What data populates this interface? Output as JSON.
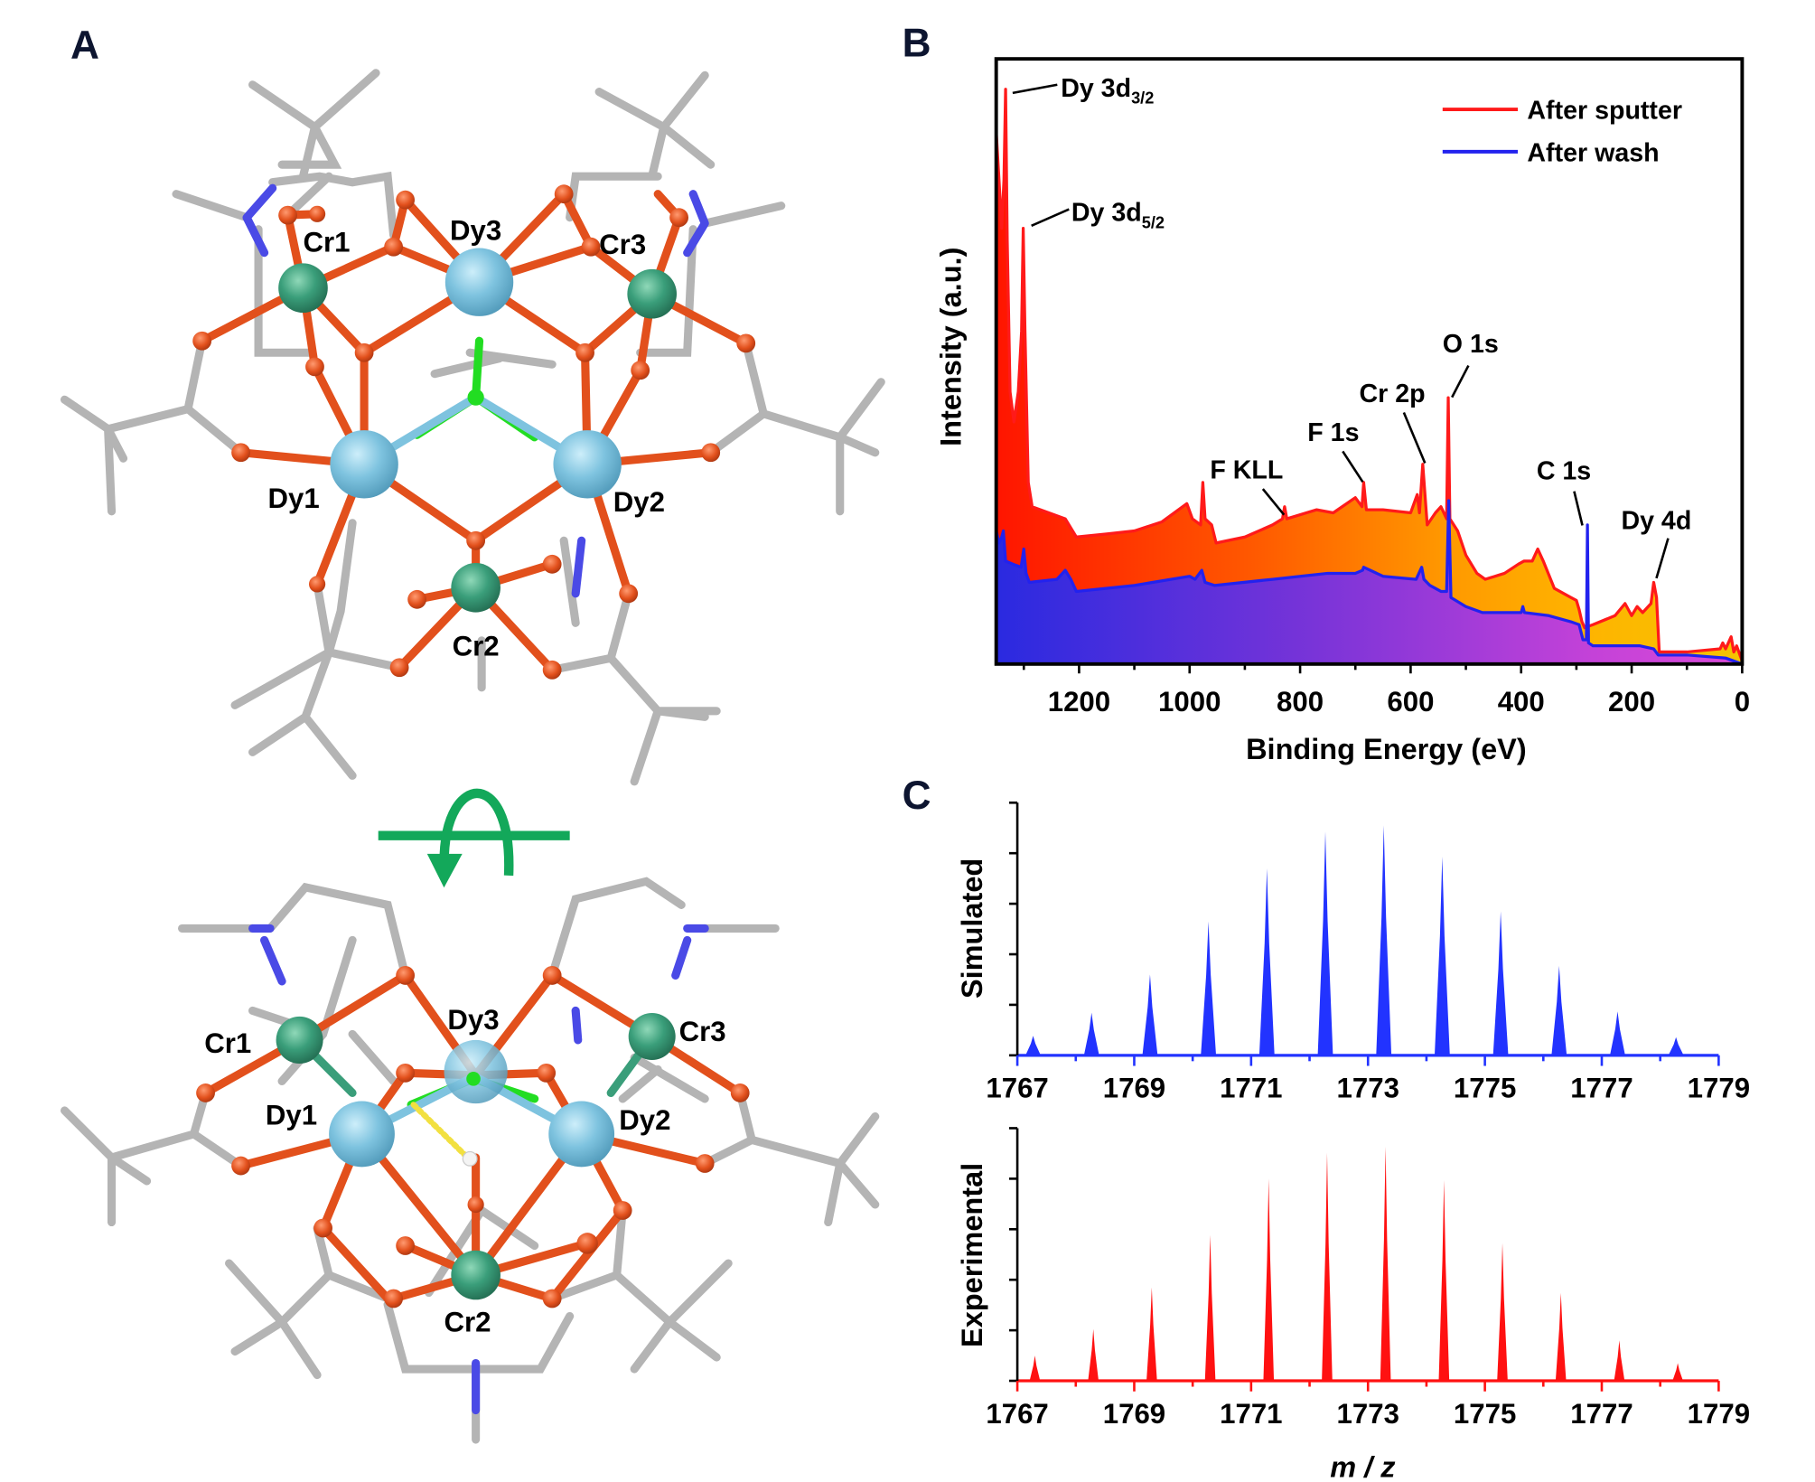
{
  "panel_labels": {
    "a": "A",
    "b": "B",
    "c": "C"
  },
  "panel_a": {
    "top_view_labels": {
      "cr1": "Cr1",
      "dy3": "Dy3",
      "cr3": "Cr3",
      "dy1": "Dy1",
      "dy2": "Dy2",
      "cr2": "Cr2"
    },
    "side_view_labels": {
      "cr1": "Cr1",
      "dy3": "Dy3",
      "cr3": "Cr3",
      "dy1": "Dy1",
      "dy2": "Dy2",
      "cr2": "Cr2"
    },
    "colors": {
      "dy": "#7ec3df",
      "cr": "#3a9e7a",
      "o": "#e2501c",
      "n": "#4a4ae6",
      "c": "#b4b4b4",
      "f": "#22dd22",
      "arrow": "#13a85a"
    }
  },
  "chart_data": [
    {
      "type": "area",
      "id": "xps-survey",
      "title": "",
      "xlabel": "Binding Energy (eV)",
      "ylabel": "Intensity (a.u.)",
      "xlim": [
        1350,
        0
      ],
      "ylim": [
        0,
        100
      ],
      "x_reversed": true,
      "xticks": [
        1200,
        1000,
        800,
        600,
        400,
        200,
        0
      ],
      "xtick_labels": [
        "1200",
        "1000",
        "800",
        "600",
        "400",
        "200",
        "0"
      ],
      "grid": false,
      "legend_position": "top-right",
      "series": [
        {
          "name": "After sputter",
          "color": "#ff1a1a",
          "points": [
            [
              1350,
              88
            ],
            [
              1345,
              80
            ],
            [
              1340,
              72
            ],
            [
              1336,
              80
            ],
            [
              1333,
              95
            ],
            [
              1330,
              70
            ],
            [
              1325,
              45
            ],
            [
              1318,
              40
            ],
            [
              1310,
              45
            ],
            [
              1304,
              55
            ],
            [
              1301,
              72
            ],
            [
              1298,
              55
            ],
            [
              1292,
              30
            ],
            [
              1285,
              26
            ],
            [
              1240,
              24.5
            ],
            [
              1225,
              24
            ],
            [
              1205,
              21
            ],
            [
              1150,
              21.5
            ],
            [
              1100,
              22
            ],
            [
              1050,
              23.5
            ],
            [
              1005,
              26.5
            ],
            [
              995,
              24
            ],
            [
              980,
              23
            ],
            [
              976,
              30
            ],
            [
              972,
              24
            ],
            [
              960,
              23
            ],
            [
              952,
              20
            ],
            [
              900,
              21
            ],
            [
              850,
              23
            ],
            [
              832,
              24
            ],
            [
              828,
              26
            ],
            [
              824,
              24
            ],
            [
              770,
              25.5
            ],
            [
              740,
              25
            ],
            [
              700,
              27.5
            ],
            [
              688,
              26
            ],
            [
              685,
              30
            ],
            [
              680,
              25.5
            ],
            [
              650,
              25.5
            ],
            [
              600,
              25
            ],
            [
              588,
              28
            ],
            [
              584,
              25
            ],
            [
              578,
              33
            ],
            [
              574,
              28
            ],
            [
              570,
              23
            ],
            [
              555,
              25
            ],
            [
              545,
              26
            ],
            [
              535,
              24
            ],
            [
              532,
              44
            ],
            [
              529,
              24
            ],
            [
              515,
              22
            ],
            [
              500,
              18
            ],
            [
              480,
              15
            ],
            [
              465,
              14
            ],
            [
              430,
              15
            ],
            [
              405,
              16.5
            ],
            [
              395,
              17
            ],
            [
              380,
              17
            ],
            [
              370,
              19
            ],
            [
              360,
              17
            ],
            [
              340,
              12.5
            ],
            [
              310,
              11
            ],
            [
              300,
              10.5
            ],
            [
              295,
              9
            ],
            [
              290,
              7
            ],
            [
              285,
              6
            ],
            [
              270,
              6.5
            ],
            [
              230,
              8
            ],
            [
              212,
              10
            ],
            [
              200,
              8
            ],
            [
              190,
              9.5
            ],
            [
              180,
              8.5
            ],
            [
              165,
              10
            ],
            [
              160,
              13.5
            ],
            [
              155,
              11
            ],
            [
              150,
              2
            ],
            [
              100,
              2
            ],
            [
              40,
              2.5
            ],
            [
              35,
              3.5
            ],
            [
              30,
              2.5
            ],
            [
              20,
              4.5
            ],
            [
              15,
              2
            ],
            [
              10,
              3
            ],
            [
              0,
              0.5
            ]
          ]
        },
        {
          "name": "After wash",
          "color": "#2222ee",
          "points": [
            [
              1350,
              22
            ],
            [
              1345,
              20
            ],
            [
              1340,
              21
            ],
            [
              1337,
              22
            ],
            [
              1333,
              17
            ],
            [
              1320,
              16.5
            ],
            [
              1305,
              16
            ],
            [
              1300,
              19
            ],
            [
              1296,
              15
            ],
            [
              1290,
              13.5
            ],
            [
              1240,
              14
            ],
            [
              1225,
              15.5
            ],
            [
              1215,
              14
            ],
            [
              1205,
              12
            ],
            [
              1100,
              13
            ],
            [
              1000,
              14.5
            ],
            [
              990,
              14
            ],
            [
              978,
              15.5
            ],
            [
              972,
              13.5
            ],
            [
              955,
              13
            ],
            [
              850,
              14
            ],
            [
              750,
              15
            ],
            [
              700,
              15
            ],
            [
              687,
              15.5
            ],
            [
              685,
              16
            ],
            [
              650,
              14.5
            ],
            [
              590,
              14
            ],
            [
              580,
              16
            ],
            [
              576,
              14
            ],
            [
              565,
              13
            ],
            [
              545,
              12
            ],
            [
              535,
              12
            ],
            [
              531,
              27
            ],
            [
              527,
              11
            ],
            [
              500,
              9.5
            ],
            [
              470,
              8.5
            ],
            [
              400,
              8.5
            ],
            [
              397,
              9.5
            ],
            [
              394,
              8.5
            ],
            [
              350,
              8
            ],
            [
              310,
              7
            ],
            [
              295,
              6.5
            ],
            [
              288,
              4
            ],
            [
              282,
              4
            ],
            [
              280,
              23
            ],
            [
              278,
              3.5
            ],
            [
              270,
              3
            ],
            [
              200,
              3
            ],
            [
              185,
              3
            ],
            [
              160,
              2.5
            ],
            [
              152,
              1.5
            ],
            [
              100,
              1.5
            ],
            [
              30,
              1
            ],
            [
              0,
              0
            ]
          ]
        }
      ],
      "annotations": [
        {
          "text": "Dy 3d",
          "sub": "3/2",
          "x": 1333
        },
        {
          "text": "Dy 3d",
          "sub": "5/2",
          "x": 1301
        },
        {
          "text": "F KLL",
          "x": 828
        },
        {
          "text": "F 1s",
          "x": 685
        },
        {
          "text": "Cr 2p",
          "x": 578
        },
        {
          "text": "O 1s",
          "x": 532
        },
        {
          "text": "C 1s",
          "x": 280
        },
        {
          "text": "Dy 4d",
          "x": 160
        }
      ]
    },
    {
      "type": "bar",
      "id": "ms-simulated",
      "ylabel": "Simulated",
      "xlabel": "",
      "xlim": [
        1767,
        1779
      ],
      "ylim": [
        0,
        100
      ],
      "xtick_labels": [
        "1767",
        "1769",
        "1771",
        "1773",
        "1775",
        "1777",
        "1779"
      ],
      "color": "#2233ff",
      "x": [
        1767.27,
        1768.27,
        1769.27,
        1770.27,
        1771.27,
        1772.27,
        1773.27,
        1774.27,
        1775.27,
        1776.27,
        1777.27,
        1778.27
      ],
      "values": [
        7.7,
        16.9,
        32,
        53,
        74,
        88.6,
        91,
        78.7,
        57,
        35.4,
        17.4,
        7.2
      ]
    },
    {
      "type": "bar",
      "id": "ms-experimental",
      "ylabel": "Experimental",
      "xlabel": "m / z",
      "xlim": [
        1767,
        1779
      ],
      "ylim": [
        0,
        100
      ],
      "xtick_labels": [
        "1767",
        "1769",
        "1771",
        "1773",
        "1775",
        "1777",
        "1779"
      ],
      "color": "#ff1111",
      "x": [
        1767.3,
        1768.3,
        1769.3,
        1770.3,
        1771.3,
        1772.3,
        1773.3,
        1774.3,
        1775.3,
        1776.3,
        1777.3,
        1778.3
      ],
      "values": [
        10,
        20.5,
        37,
        57.7,
        80,
        90.3,
        92.7,
        79.4,
        54.5,
        34.8,
        16,
        7
      ]
    }
  ]
}
